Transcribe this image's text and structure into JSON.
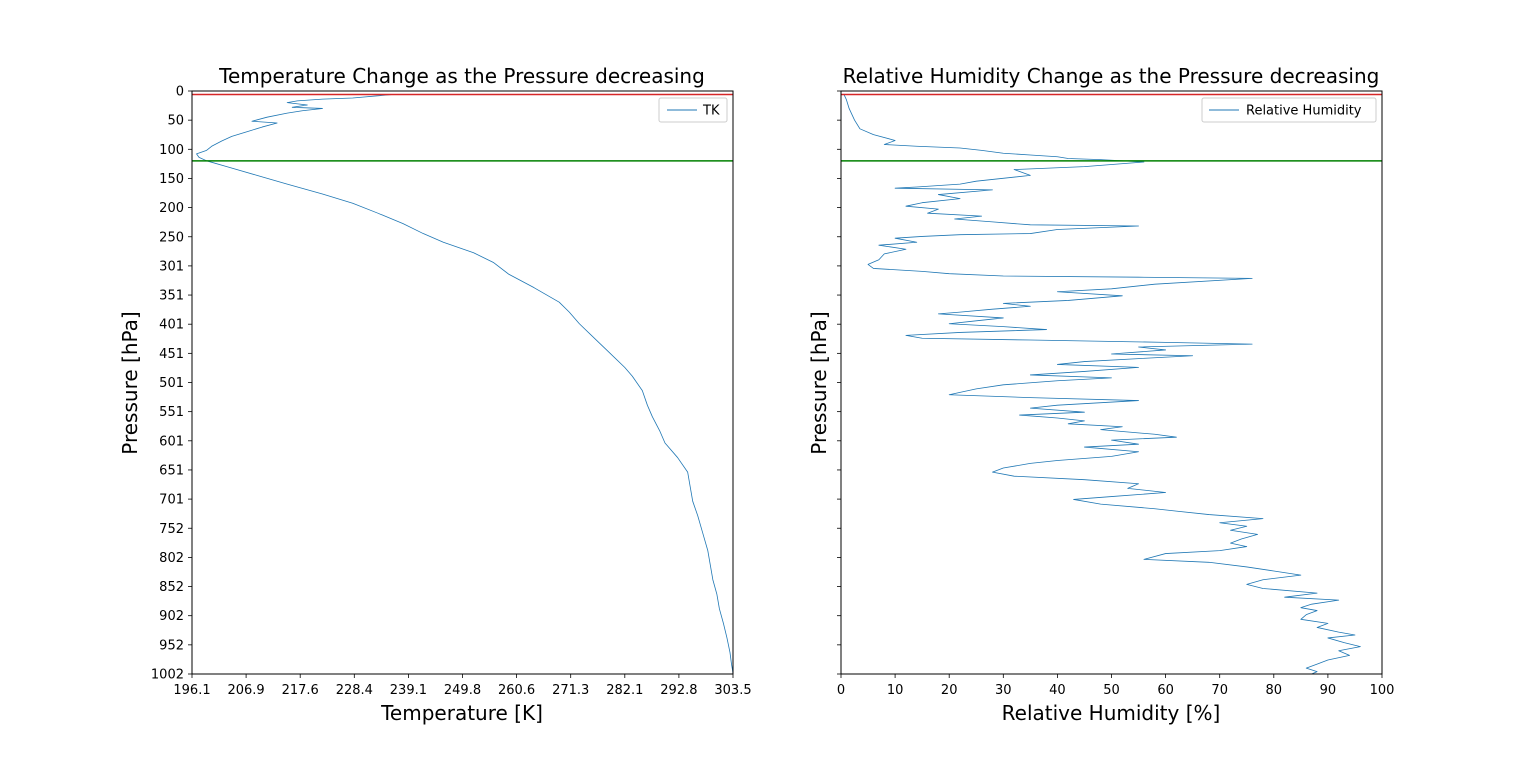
{
  "chart_data": [
    {
      "type": "line",
      "title": "Temperature Change as the Pressure decreasing",
      "xlabel": "Temperature [K]",
      "ylabel": "Pressure [hPa]",
      "xlim": [
        196.1,
        303.5
      ],
      "ylim": [
        1002,
        0
      ],
      "y_inverted": true,
      "grid": false,
      "legend_position": "top-right",
      "x_ticks": [
        "196.1",
        "206.9",
        "217.6",
        "228.4",
        "239.1",
        "249.8",
        "260.6",
        "271.3",
        "282.1",
        "292.8",
        "303.5"
      ],
      "y_ticks": [
        "0",
        "50",
        "100",
        "150",
        "200",
        "250",
        "301",
        "351",
        "401",
        "451",
        "501",
        "551",
        "601",
        "651",
        "701",
        "752",
        "802",
        "852",
        "902",
        "952",
        "1002"
      ],
      "reference_lines": [
        {
          "y": 6,
          "color": "#d62728"
        },
        {
          "y": 120,
          "color": "#008000"
        }
      ],
      "series": [
        {
          "name": "TK",
          "color": "#1f77b4",
          "points": [
            [
              236,
              6
            ],
            [
              228,
              12
            ],
            [
              222,
              14
            ],
            [
              217,
              17
            ],
            [
              215,
              20
            ],
            [
              219,
              24
            ],
            [
              216,
              28
            ],
            [
              222,
              30
            ],
            [
              218,
              34
            ],
            [
              215,
              38
            ],
            [
              211,
              45
            ],
            [
              208,
              52
            ],
            [
              213,
              55
            ],
            [
              210,
              62
            ],
            [
              207,
              70
            ],
            [
              204,
              78
            ],
            [
              202,
              86
            ],
            [
              200,
              95
            ],
            [
              199,
              102
            ],
            [
              197,
              108
            ],
            [
              197.5,
              114
            ],
            [
              199,
              120
            ],
            [
              203,
              130
            ],
            [
              209,
              145
            ],
            [
              215,
              160
            ],
            [
              222,
              177
            ],
            [
              228,
              193
            ],
            [
              233,
              210
            ],
            [
              238,
              228
            ],
            [
              242,
              245
            ],
            [
              246,
              260
            ],
            [
              252,
              278
            ],
            [
              256,
              295
            ],
            [
              259,
              315
            ],
            [
              264,
              338
            ],
            [
              269,
              363
            ],
            [
              271,
              380
            ],
            [
              273,
              400
            ],
            [
              276,
              425
            ],
            [
              279,
              450
            ],
            [
              282,
              475
            ],
            [
              283.5,
              490
            ],
            [
              285.5,
              515
            ],
            [
              286.5,
              540
            ],
            [
              287.5,
              560
            ],
            [
              289,
              585
            ],
            [
              290,
              605
            ],
            [
              292.5,
              630
            ],
            [
              294.5,
              655
            ],
            [
              295,
              680
            ],
            [
              295.5,
              705
            ],
            [
              296.5,
              730
            ],
            [
              297.5,
              760
            ],
            [
              298.5,
              790
            ],
            [
              299,
              815
            ],
            [
              299.5,
              840
            ],
            [
              300.3,
              865
            ],
            [
              300.8,
              890
            ],
            [
              301.6,
              915
            ],
            [
              302.3,
              940
            ],
            [
              302.9,
              965
            ],
            [
              303.2,
              985
            ],
            [
              303.4,
              995
            ],
            [
              303.5,
              1002
            ]
          ]
        }
      ]
    },
    {
      "type": "line",
      "title": "Relative Humidity Change as the Pressure decreasing",
      "xlabel": "Relative Humidity [%]",
      "ylabel": "Pressure [hPa]",
      "xlim": [
        0,
        100
      ],
      "ylim": [
        1002,
        0
      ],
      "y_inverted": true,
      "grid": false,
      "legend_position": "top-right",
      "x_ticks": [
        "0",
        "10",
        "20",
        "30",
        "40",
        "50",
        "60",
        "70",
        "80",
        "90",
        "100"
      ],
      "reference_lines": [
        {
          "y": 6,
          "color": "#d62728"
        },
        {
          "y": 120,
          "color": "#008000"
        }
      ],
      "series": [
        {
          "name": "Relative Humidity",
          "color": "#1f77b4",
          "points": [
            [
              0.5,
              5
            ],
            [
              1,
              15
            ],
            [
              1.5,
              30
            ],
            [
              2.5,
              50
            ],
            [
              3.5,
              65
            ],
            [
              6,
              75
            ],
            [
              10,
              85
            ],
            [
              8,
              92
            ],
            [
              14,
              95
            ],
            [
              22,
              98
            ],
            [
              26,
              102
            ],
            [
              30,
              107
            ],
            [
              35,
              110
            ],
            [
              40,
              113
            ],
            [
              42,
              116
            ],
            [
              48,
              118
            ],
            [
              56,
              122
            ],
            [
              45,
              130
            ],
            [
              32,
              135
            ],
            [
              35,
              145
            ],
            [
              25,
              155
            ],
            [
              22,
              160
            ],
            [
              14,
              165
            ],
            [
              10,
              167
            ],
            [
              28,
              170
            ],
            [
              18,
              178
            ],
            [
              22,
              185
            ],
            [
              15,
              192
            ],
            [
              12,
              198
            ],
            [
              18,
              203
            ],
            [
              16,
              210
            ],
            [
              26,
              215
            ],
            [
              21,
              220
            ],
            [
              28,
              225
            ],
            [
              35,
              230
            ],
            [
              55,
              232
            ],
            [
              40,
              238
            ],
            [
              35,
              245
            ],
            [
              22,
              247
            ],
            [
              15,
              250
            ],
            [
              10,
              253
            ],
            [
              14,
              260
            ],
            [
              7,
              265
            ],
            [
              12,
              272
            ],
            [
              8,
              280
            ],
            [
              7,
              290
            ],
            [
              5,
              298
            ],
            [
              6,
              305
            ],
            [
              15,
              310
            ],
            [
              20,
              314
            ],
            [
              30,
              318
            ],
            [
              55,
              320
            ],
            [
              76,
              322
            ],
            [
              58,
              332
            ],
            [
              50,
              340
            ],
            [
              40,
              345
            ],
            [
              52,
              352
            ],
            [
              42,
              360
            ],
            [
              30,
              365
            ],
            [
              35,
              370
            ],
            [
              28,
              375
            ],
            [
              22,
              380
            ],
            [
              18,
              383
            ],
            [
              30,
              390
            ],
            [
              25,
              395
            ],
            [
              20,
              400
            ],
            [
              30,
              405
            ],
            [
              38,
              410
            ],
            [
              22,
              415
            ],
            [
              12,
              420
            ],
            [
              15,
              425
            ],
            [
              35,
              428
            ],
            [
              60,
              432
            ],
            [
              76,
              435
            ],
            [
              55,
              440
            ],
            [
              60,
              445
            ],
            [
              50,
              452
            ],
            [
              65,
              455
            ],
            [
              55,
              460
            ],
            [
              45,
              465
            ],
            [
              40,
              470
            ],
            [
              55,
              475
            ],
            [
              45,
              482
            ],
            [
              35,
              488
            ],
            [
              50,
              493
            ],
            [
              40,
              498
            ],
            [
              30,
              505
            ],
            [
              25,
              512
            ],
            [
              22,
              518
            ],
            [
              20,
              522
            ],
            [
              35,
              527
            ],
            [
              55,
              532
            ],
            [
              40,
              540
            ],
            [
              35,
              545
            ],
            [
              45,
              552
            ],
            [
              33,
              557
            ],
            [
              40,
              562
            ],
            [
              45,
              567
            ],
            [
              42,
              572
            ],
            [
              52,
              577
            ],
            [
              48,
              582
            ],
            [
              58,
              590
            ],
            [
              62,
              595
            ],
            [
              50,
              600
            ],
            [
              55,
              607
            ],
            [
              45,
              612
            ],
            [
              55,
              620
            ],
            [
              50,
              628
            ],
            [
              40,
              635
            ],
            [
              35,
              640
            ],
            [
              30,
              648
            ],
            [
              28,
              655
            ],
            [
              32,
              662
            ],
            [
              45,
              668
            ],
            [
              55,
              675
            ],
            [
              53,
              683
            ],
            [
              60,
              690
            ],
            [
              50,
              697
            ],
            [
              43,
              702
            ],
            [
              48,
              710
            ],
            [
              58,
              718
            ],
            [
              62,
              722
            ],
            [
              68,
              728
            ],
            [
              78,
              735
            ],
            [
              70,
              742
            ],
            [
              75,
              748
            ],
            [
              72,
              755
            ],
            [
              77,
              762
            ],
            [
              74,
              770
            ],
            [
              72,
              777
            ],
            [
              75,
              783
            ],
            [
              70,
              790
            ],
            [
              60,
              795
            ],
            [
              56,
              805
            ],
            [
              68,
              810
            ],
            [
              75,
              818
            ],
            [
              80,
              825
            ],
            [
              85,
              832
            ],
            [
              78,
              840
            ],
            [
              75,
              848
            ],
            [
              78,
              855
            ],
            [
              88,
              863
            ],
            [
              82,
              870
            ],
            [
              92,
              875
            ],
            [
              87,
              882
            ],
            [
              85,
              888
            ],
            [
              88,
              893
            ],
            [
              86,
              900
            ],
            [
              85,
              908
            ],
            [
              90,
              915
            ],
            [
              88,
              922
            ],
            [
              92,
              930
            ],
            [
              95,
              935
            ],
            [
              90,
              940
            ],
            [
              93,
              948
            ],
            [
              96,
              955
            ],
            [
              92,
              962
            ],
            [
              94,
              970
            ],
            [
              90,
              978
            ],
            [
              88,
              985
            ],
            [
              86,
              992
            ],
            [
              88,
              998
            ],
            [
              87,
              1002
            ]
          ]
        }
      ]
    }
  ]
}
